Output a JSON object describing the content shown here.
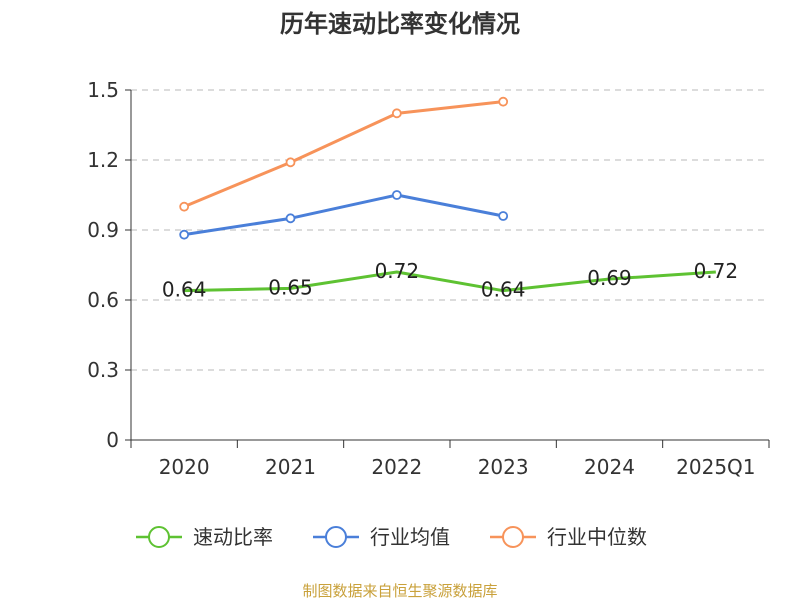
{
  "chart_data": {
    "type": "line",
    "title": "历年速动比率变化情况",
    "categories": [
      "2020",
      "2021",
      "2022",
      "2023",
      "2024",
      "2025Q1"
    ],
    "ylim": [
      0,
      1.5
    ],
    "yticks": [
      0,
      0.3,
      0.6,
      0.9,
      1.2,
      1.5
    ],
    "ytick_labels": [
      "0",
      "0.3",
      "0.6",
      "0.9",
      "1.2",
      "1.5"
    ],
    "grid": true,
    "legend_position": "bottom",
    "series": [
      {
        "name": "速动比率",
        "color": "#5ec232",
        "values": [
          0.64,
          0.65,
          0.72,
          0.64,
          0.69,
          0.72
        ],
        "labels": [
          "0.64",
          "0.65",
          "0.72",
          "0.64",
          "0.69",
          "0.72"
        ],
        "show_markers": false
      },
      {
        "name": "行业均值",
        "color": "#4a7fd9",
        "values": [
          0.88,
          0.95,
          1.05,
          0.96,
          null,
          null
        ],
        "show_markers": true
      },
      {
        "name": "行业中位数",
        "color": "#f7935a",
        "values": [
          1.0,
          1.19,
          1.4,
          1.45,
          null,
          null
        ],
        "show_markers": true
      }
    ],
    "source": "制图数据来自恒生聚源数据库"
  }
}
